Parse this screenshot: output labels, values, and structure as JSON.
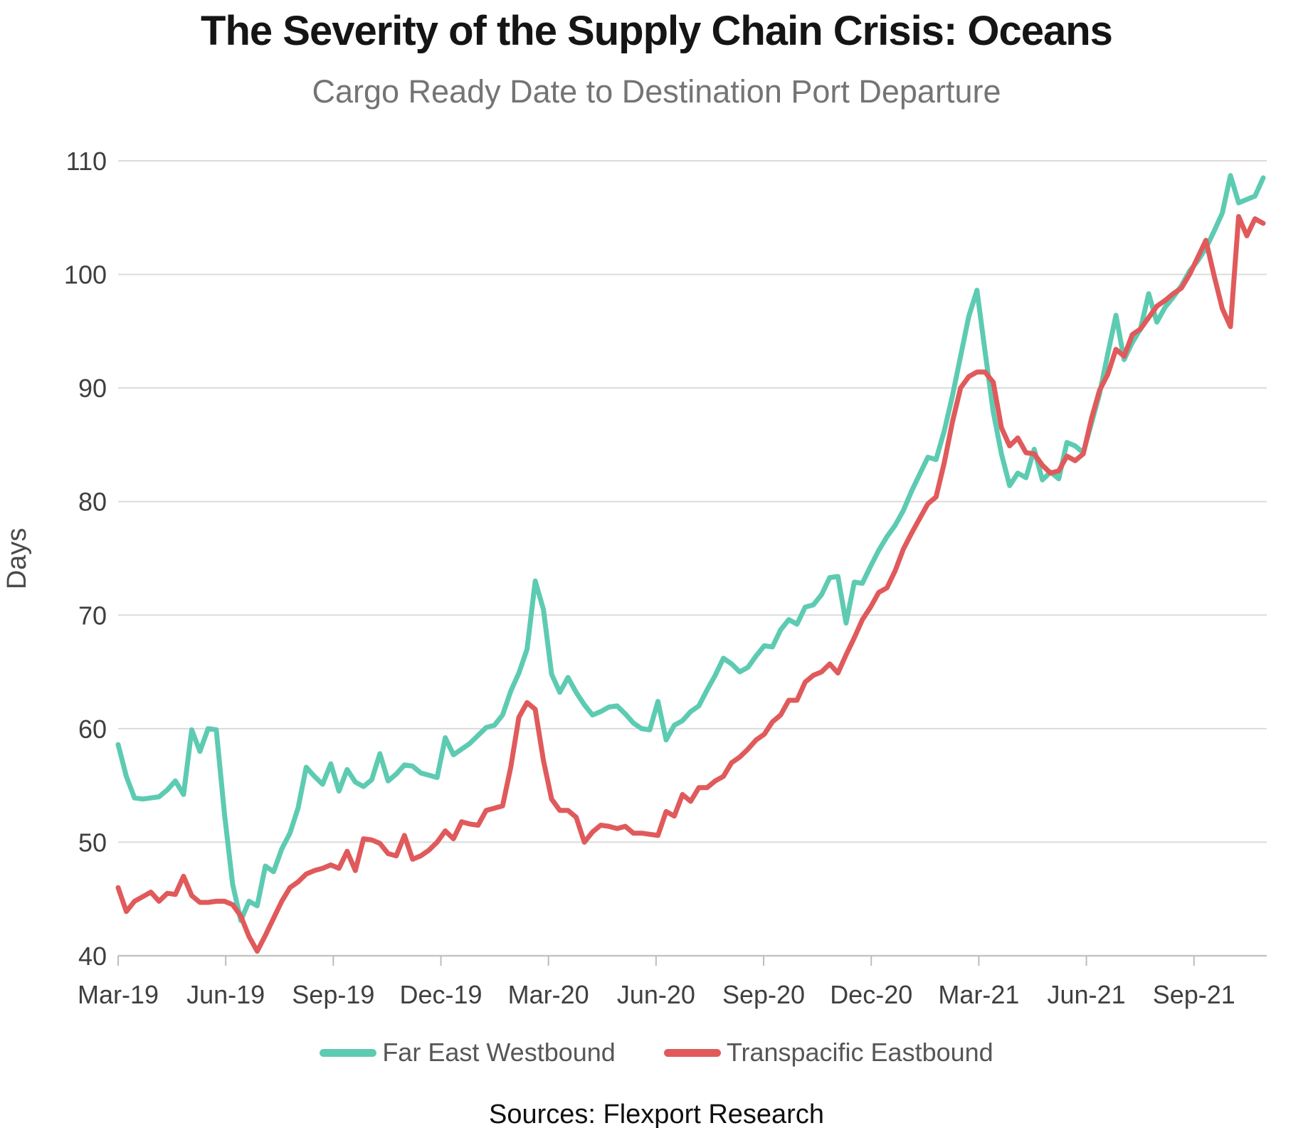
{
  "chart_data": {
    "type": "line",
    "title": "The Severity of the Supply Chain Crisis: Oceans",
    "subtitle": "Cargo Ready Date to Destination Port Departure",
    "ylabel": "Days",
    "source": "Sources: Flexport Research",
    "ylim": [
      40,
      110
    ],
    "y_ticks": [
      40,
      50,
      60,
      70,
      80,
      90,
      100,
      110
    ],
    "grid": "horizontal-only",
    "legend_position": "bottom",
    "x_unit": "weekly observations, Mar-2019 through mid-Nov-2021",
    "x_total_weeks": 140,
    "x_months_span": 31.93,
    "x_ticks": [
      {
        "m": 0,
        "label": "Mar-19"
      },
      {
        "m": 3,
        "label": "Jun-19"
      },
      {
        "m": 6,
        "label": "Sep-19"
      },
      {
        "m": 9,
        "label": "Dec-19"
      },
      {
        "m": 12,
        "label": "Mar-20"
      },
      {
        "m": 15,
        "label": "Jun-20"
      },
      {
        "m": 18,
        "label": "Sep-20"
      },
      {
        "m": 21,
        "label": "Dec-20"
      },
      {
        "m": 24,
        "label": "Mar-21"
      },
      {
        "m": 27,
        "label": "Jun-21"
      },
      {
        "m": 30,
        "label": "Sep-21"
      }
    ],
    "series": [
      {
        "name": "Far East Westbound",
        "color": "#5DCBB2",
        "values": [
          58.6,
          55.8,
          53.9,
          53.8,
          53.9,
          54.0,
          54.6,
          55.4,
          54.2,
          59.9,
          58.0,
          60.0,
          59.9,
          52.5,
          46.3,
          43.1,
          44.8,
          44.4,
          47.9,
          47.4,
          49.4,
          50.8,
          53.0,
          56.6,
          55.8,
          55.1,
          56.9,
          54.5,
          56.4,
          55.3,
          54.9,
          55.5,
          57.8,
          55.4,
          56.0,
          56.8,
          56.7,
          56.1,
          55.9,
          55.7,
          59.2,
          57.7,
          58.2,
          58.7,
          59.4,
          60.1,
          60.3,
          61.2,
          63.3,
          64.9,
          67.0,
          73.0,
          70.5,
          64.8,
          63.2,
          64.5,
          63.2,
          62.1,
          61.2,
          61.5,
          61.9,
          62.0,
          61.3,
          60.5,
          60.0,
          59.9,
          62.4,
          59.0,
          60.3,
          60.7,
          61.5,
          62.0,
          63.4,
          64.7,
          66.2,
          65.7,
          65.0,
          65.4,
          66.4,
          67.3,
          67.2,
          68.7,
          69.6,
          69.2,
          70.7,
          70.9,
          71.8,
          73.3,
          73.4,
          69.3,
          72.9,
          72.8,
          74.3,
          75.7,
          76.9,
          77.9,
          79.2,
          80.9,
          82.4,
          83.9,
          83.7,
          86.2,
          89.3,
          92.8,
          96.3,
          98.6,
          93.2,
          87.9,
          84.2,
          81.4,
          82.5,
          82.1,
          84.6,
          81.9,
          82.6,
          82.0,
          85.2,
          84.9,
          84.3,
          86.9,
          89.5,
          93.0,
          96.4,
          92.5,
          94.0,
          95.2,
          98.3,
          95.8,
          97.1,
          98.0,
          99.0,
          100.3,
          101.2,
          102.3,
          103.8,
          105.4,
          108.7,
          106.3,
          106.6,
          106.9,
          108.5
        ]
      },
      {
        "name": "Transpacific Eastbound",
        "color": "#E05A5C",
        "values": [
          46.0,
          43.9,
          44.8,
          45.2,
          45.6,
          44.8,
          45.5,
          45.4,
          47.0,
          45.3,
          44.7,
          44.7,
          44.8,
          44.8,
          44.5,
          43.5,
          41.7,
          40.4,
          41.8,
          43.3,
          44.8,
          46.0,
          46.5,
          47.2,
          47.5,
          47.7,
          48.0,
          47.7,
          49.2,
          47.5,
          50.3,
          50.2,
          49.9,
          49.0,
          48.8,
          50.6,
          48.5,
          48.8,
          49.3,
          50.0,
          51.0,
          50.3,
          51.8,
          51.6,
          51.5,
          52.8,
          53.0,
          53.2,
          56.6,
          61.0,
          62.3,
          61.7,
          57.2,
          53.8,
          52.8,
          52.8,
          52.2,
          50.0,
          50.9,
          51.5,
          51.4,
          51.2,
          51.4,
          50.8,
          50.8,
          50.7,
          50.6,
          52.7,
          52.3,
          54.2,
          53.6,
          54.8,
          54.8,
          55.4,
          55.8,
          57.0,
          57.5,
          58.2,
          59.0,
          59.5,
          60.6,
          61.2,
          62.5,
          62.5,
          64.1,
          64.7,
          65.0,
          65.7,
          64.9,
          66.5,
          68.0,
          69.6,
          70.7,
          72.0,
          72.4,
          73.9,
          75.8,
          77.2,
          78.5,
          79.8,
          80.4,
          83.4,
          87.0,
          90.0,
          91.0,
          91.4,
          91.4,
          90.5,
          86.5,
          84.9,
          85.6,
          84.3,
          84.2,
          83.2,
          82.5,
          82.7,
          84.0,
          83.6,
          84.2,
          87.3,
          89.8,
          91.2,
          93.4,
          92.8,
          94.7,
          95.2,
          96.2,
          97.2,
          97.7,
          98.3,
          98.8,
          100.0,
          101.5,
          103.0,
          99.9,
          97.0,
          95.4,
          105.1,
          103.4,
          104.9,
          104.5
        ]
      }
    ]
  }
}
